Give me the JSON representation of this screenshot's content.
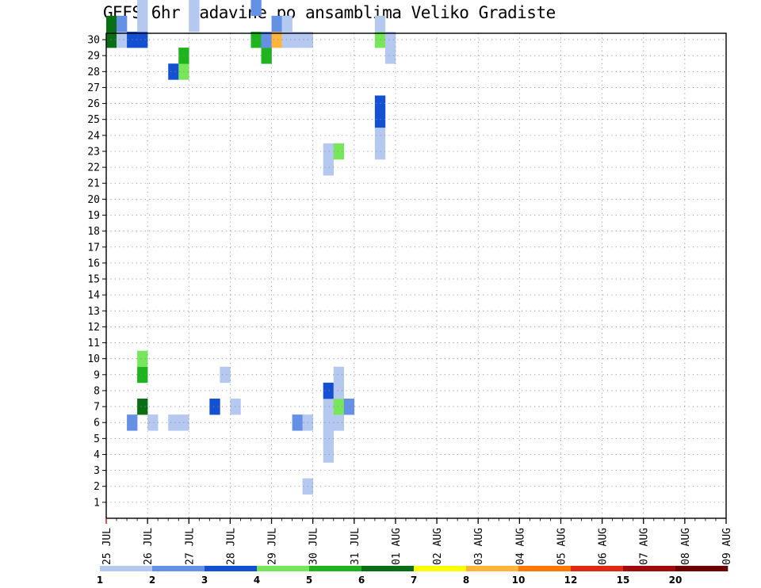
{
  "chart_data": {
    "type": "heatmap",
    "title": "GEFS 6hr padavine po ansamblima Veliko Gradiste",
    "x_ticks": [
      "25 JUL",
      "26 JUL",
      "27 JUL",
      "28 JUL",
      "29 JUL",
      "30 JUL",
      "31 JUL",
      "01 AUG",
      "02 AUG",
      "03 AUG",
      "04 AUG",
      "05 AUG",
      "06 AUG",
      "07 AUG",
      "08 AUG",
      "09 AUG"
    ],
    "y_ticks": [
      "1",
      "2",
      "3",
      "4",
      "5",
      "6",
      "7",
      "8",
      "9",
      "10",
      "11",
      "12",
      "13",
      "14",
      "15",
      "16",
      "17",
      "18",
      "19",
      "20",
      "21",
      "22",
      "23",
      "24",
      "25",
      "26",
      "27",
      "28",
      "29",
      "30"
    ],
    "members": 30,
    "step_hours": 6,
    "grid": true,
    "legend_position": "bottom",
    "colorbar": {
      "labels": [
        "1",
        "2",
        "3",
        "4",
        "5",
        "6",
        "7",
        "8",
        "10",
        "12",
        "15",
        "20"
      ],
      "colors": [
        "#b4c8f0",
        "#6490e6",
        "#1450d2",
        "#78e65a",
        "#1eb41e",
        "#0a6e14",
        "#ffff00",
        "#ffb43c",
        "#ff7800",
        "#e12814",
        "#a00a0a",
        "#6e0000"
      ]
    },
    "cells": [
      [
        0,
        30,
        6
      ],
      [
        0,
        31,
        6
      ],
      [
        0,
        40,
        2
      ],
      [
        0,
        51,
        12
      ],
      [
        0,
        52,
        6
      ],
      [
        0,
        53,
        1
      ],
      [
        0,
        54,
        2
      ],
      [
        0,
        63,
        8
      ],
      [
        0,
        64,
        5
      ],
      [
        0,
        65,
        9
      ],
      [
        0,
        68,
        6
      ],
      [
        1,
        30,
        1
      ],
      [
        1,
        31,
        2
      ],
      [
        1,
        34,
        5
      ],
      [
        1,
        35,
        2
      ],
      [
        1,
        36,
        6
      ],
      [
        2,
        6,
        2
      ],
      [
        2,
        30,
        3
      ],
      [
        2,
        36,
        1
      ],
      [
        2,
        37,
        2
      ],
      [
        2,
        38,
        2
      ],
      [
        2,
        39,
        8
      ],
      [
        2,
        40,
        2
      ],
      [
        2,
        41,
        3
      ],
      [
        2,
        57,
        2
      ],
      [
        2,
        58,
        1
      ],
      [
        2,
        63,
        3
      ],
      [
        2,
        66,
        1
      ],
      [
        2,
        67,
        1
      ],
      [
        3,
        7,
        6
      ],
      [
        3,
        9,
        5
      ],
      [
        3,
        10,
        4
      ],
      [
        3,
        30,
        3
      ],
      [
        3,
        31,
        1
      ],
      [
        3,
        32,
        1
      ],
      [
        3,
        33,
        1
      ],
      [
        3,
        44,
        4
      ],
      [
        3,
        48,
        5
      ],
      [
        3,
        49,
        7
      ],
      [
        3,
        50,
        9
      ],
      [
        3,
        51,
        10
      ],
      [
        3,
        53,
        4
      ],
      [
        3,
        56,
        2
      ],
      [
        3,
        57,
        4
      ],
      [
        3,
        58,
        1
      ],
      [
        3,
        66,
        3
      ],
      [
        3,
        67,
        3
      ],
      [
        4,
        6,
        1
      ],
      [
        4,
        35,
        5
      ],
      [
        4,
        36,
        1
      ],
      [
        4,
        41,
        3
      ],
      [
        4,
        42,
        7
      ],
      [
        4,
        43,
        12
      ],
      [
        4,
        44,
        6
      ],
      [
        4,
        45,
        1
      ],
      [
        4,
        46,
        2
      ],
      [
        6,
        6,
        1
      ],
      [
        6,
        28,
        3
      ],
      [
        6,
        43,
        2
      ],
      [
        6,
        44,
        4
      ],
      [
        6,
        47,
        3
      ],
      [
        6,
        50,
        1
      ],
      [
        7,
        6,
        1
      ],
      [
        7,
        28,
        4
      ],
      [
        7,
        29,
        5
      ],
      [
        7,
        36,
        1
      ],
      [
        7,
        38,
        1
      ],
      [
        7,
        73,
        2
      ],
      [
        8,
        31,
        1
      ],
      [
        8,
        32,
        1
      ],
      [
        8,
        41,
        2
      ],
      [
        8,
        42,
        3
      ],
      [
        8,
        43,
        1
      ],
      [
        8,
        70,
        2
      ],
      [
        10,
        7,
        3
      ],
      [
        10,
        36,
        1
      ],
      [
        10,
        45,
        1
      ],
      [
        10,
        46,
        3
      ],
      [
        10,
        47,
        2
      ],
      [
        10,
        53,
        1
      ],
      [
        10,
        57,
        1
      ],
      [
        10,
        73,
        1
      ],
      [
        11,
        9,
        1
      ],
      [
        11,
        54,
        12
      ],
      [
        11,
        55,
        4
      ],
      [
        11,
        56,
        1
      ],
      [
        11,
        57,
        1
      ],
      [
        11,
        58,
        1
      ],
      [
        11,
        66,
        5
      ],
      [
        11,
        67,
        6
      ],
      [
        11,
        69,
        1
      ],
      [
        12,
        7,
        1
      ],
      [
        12,
        36,
        1
      ],
      [
        13,
        35,
        4
      ],
      [
        13,
        36,
        5
      ],
      [
        14,
        30,
        5
      ],
      [
        14,
        32,
        2
      ],
      [
        14,
        45,
        3
      ],
      [
        14,
        48,
        2
      ],
      [
        14,
        49,
        2
      ],
      [
        14,
        53,
        3
      ],
      [
        14,
        54,
        2
      ],
      [
        14,
        56,
        2
      ],
      [
        14,
        57,
        1
      ],
      [
        14,
        66,
        5
      ],
      [
        14,
        67,
        3
      ],
      [
        14,
        68,
        2
      ],
      [
        14,
        69,
        4
      ],
      [
        15,
        29,
        5
      ],
      [
        15,
        30,
        2
      ],
      [
        15,
        47,
        3
      ],
      [
        15,
        48,
        2
      ],
      [
        15,
        55,
        2
      ],
      [
        15,
        56,
        3
      ],
      [
        15,
        57,
        1
      ],
      [
        15,
        59,
        2
      ],
      [
        15,
        60,
        1
      ],
      [
        15,
        65,
        1
      ],
      [
        15,
        66,
        1
      ],
      [
        15,
        67,
        1
      ],
      [
        15,
        68,
        1
      ],
      [
        16,
        30,
        8
      ],
      [
        16,
        31,
        2
      ],
      [
        16,
        52,
        3
      ],
      [
        17,
        30,
        1
      ],
      [
        17,
        31,
        1
      ],
      [
        17,
        35,
        1
      ],
      [
        17,
        36,
        2
      ],
      [
        17,
        37,
        1
      ],
      [
        17,
        52,
        7
      ],
      [
        17,
        53,
        12
      ],
      [
        17,
        60,
        1
      ],
      [
        17,
        68,
        1
      ],
      [
        18,
        6,
        2
      ],
      [
        18,
        30,
        1
      ],
      [
        18,
        34,
        1
      ],
      [
        18,
        35,
        4
      ],
      [
        18,
        38,
        4
      ],
      [
        18,
        39,
        10
      ],
      [
        18,
        40,
        10
      ],
      [
        18,
        42,
        12
      ],
      [
        18,
        43,
        8
      ],
      [
        18,
        45,
        1
      ],
      [
        18,
        46,
        3
      ],
      [
        18,
        47,
        6
      ],
      [
        18,
        48,
        1
      ],
      [
        18,
        49,
        1
      ],
      [
        18,
        50,
        1
      ],
      [
        18,
        60,
        1
      ],
      [
        18,
        63,
        3
      ],
      [
        18,
        64,
        2
      ],
      [
        19,
        2,
        1
      ],
      [
        19,
        6,
        1
      ],
      [
        19,
        30,
        1
      ],
      [
        21,
        4,
        1
      ],
      [
        21,
        5,
        1
      ],
      [
        21,
        6,
        1
      ],
      [
        21,
        7,
        1
      ],
      [
        21,
        8,
        3
      ],
      [
        21,
        22,
        1
      ],
      [
        21,
        23,
        1
      ],
      [
        21,
        41,
        5
      ],
      [
        21,
        42,
        1
      ],
      [
        21,
        53,
        3
      ],
      [
        21,
        54,
        1
      ],
      [
        21,
        63,
        2
      ],
      [
        21,
        68,
        1
      ],
      [
        21,
        69,
        4
      ],
      [
        22,
        6,
        1
      ],
      [
        22,
        7,
        4
      ],
      [
        22,
        8,
        1
      ],
      [
        22,
        9,
        1
      ],
      [
        22,
        23,
        4
      ],
      [
        22,
        40,
        8
      ],
      [
        22,
        41,
        8
      ],
      [
        23,
        7,
        2
      ],
      [
        23,
        36,
        1
      ],
      [
        23,
        66,
        10
      ],
      [
        23,
        67,
        2
      ],
      [
        24,
        35,
        4
      ],
      [
        24,
        36,
        3
      ],
      [
        24,
        46,
        4
      ],
      [
        24,
        47,
        5
      ],
      [
        25,
        38,
        1
      ],
      [
        25,
        42,
        2
      ],
      [
        25,
        43,
        2
      ],
      [
        26,
        23,
        1
      ],
      [
        26,
        24,
        1
      ],
      [
        26,
        25,
        3
      ],
      [
        26,
        26,
        3
      ],
      [
        26,
        30,
        4
      ],
      [
        26,
        31,
        1
      ],
      [
        26,
        41,
        5
      ],
      [
        26,
        47,
        1
      ],
      [
        26,
        61,
        1
      ],
      [
        27,
        29,
        1
      ],
      [
        27,
        30,
        1
      ],
      [
        28,
        40,
        3
      ],
      [
        28,
        41,
        4
      ],
      [
        28,
        42,
        5
      ]
    ]
  }
}
